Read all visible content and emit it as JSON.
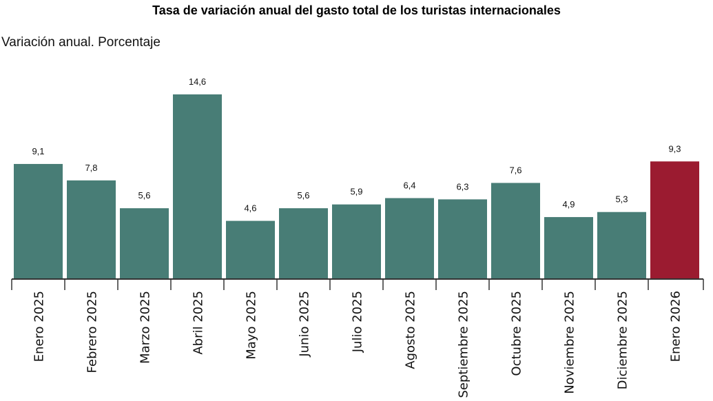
{
  "chart_data": {
    "type": "bar",
    "title": "Tasa de variación anual del gasto total de los turistas internacionales",
    "subtitle": "Variación anual. Porcentaje",
    "categories": [
      "Enero 2025",
      "Febrero 2025",
      "Marzo 2025",
      "Abril 2025",
      "Mayo 2025",
      "Junio 2025",
      "Julio 2025",
      "Agosto 2025",
      "Septiembre 2025",
      "Octubre 2025",
      "Noviembre 2025",
      "Diciembre 2025",
      "Enero 2026"
    ],
    "values": [
      9.1,
      7.8,
      5.6,
      14.6,
      4.6,
      5.6,
      5.9,
      6.4,
      6.3,
      7.6,
      4.9,
      5.3,
      9.3
    ],
    "value_labels": [
      "9,1",
      "7,8",
      "5,6",
      "14,6",
      "4,6",
      "5,6",
      "5,9",
      "6,4",
      "6,3",
      "7,6",
      "4,9",
      "5,3",
      "9,3"
    ],
    "ylim": [
      0,
      14.6
    ],
    "grid": false,
    "legend": "none",
    "colors": {
      "default": "#487d76",
      "highlight": "#9b1b30"
    },
    "highlight_index": 12
  }
}
